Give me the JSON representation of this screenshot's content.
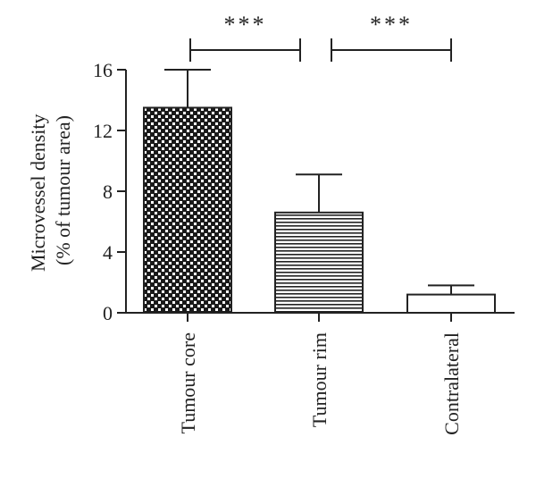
{
  "chart_data": {
    "type": "bar",
    "categories": [
      "Tumour core",
      "Tumour rim",
      "Contralateral"
    ],
    "values": [
      13.5,
      6.6,
      1.2
    ],
    "errors": [
      2.5,
      2.5,
      0.6
    ],
    "bar_patterns": [
      "dotted-checker",
      "horizontal-lines",
      "none"
    ],
    "ylabel_line1": "Microvessel density",
    "ylabel_line2": "(% of tumour area)",
    "ylim": [
      0,
      16
    ],
    "yticks": [
      0,
      4,
      8,
      12,
      16
    ],
    "significance": [
      {
        "from": 0,
        "to": 1,
        "label": "***"
      },
      {
        "from": 1,
        "to": 2,
        "label": "***"
      }
    ],
    "colors": {
      "ink": "#222222",
      "bar_dark": "#1a1a1a",
      "bar_light": "#ffffff"
    }
  }
}
